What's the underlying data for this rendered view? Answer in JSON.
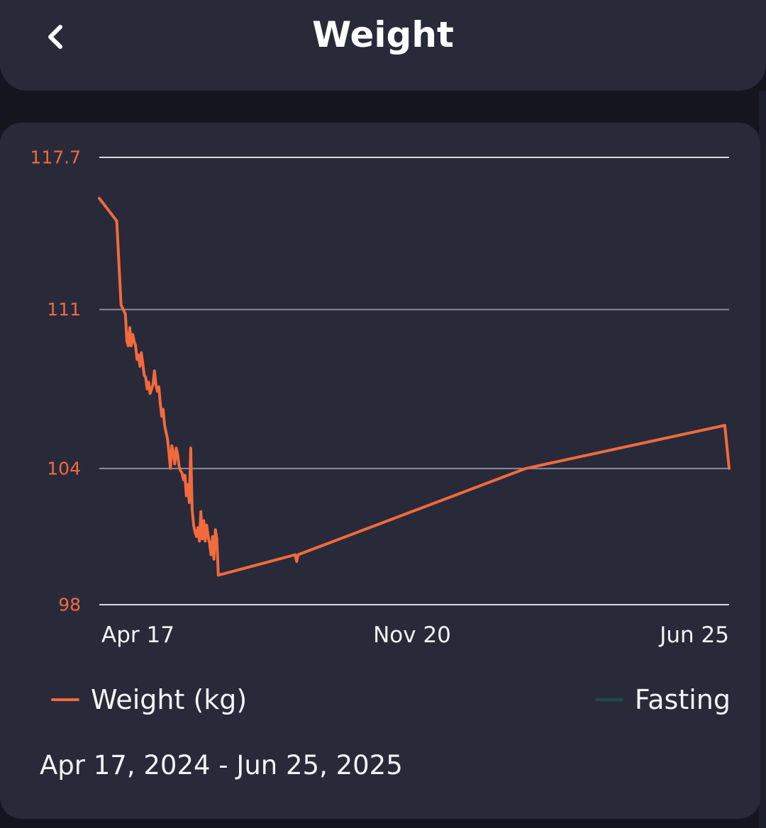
{
  "header": {
    "title": "Weight",
    "back_icon": "chevron-left-icon"
  },
  "colors": {
    "background": "#14151f",
    "surface": "#282a3a",
    "weight_line": "#f26a3d",
    "fasting_line": "#1c4a4a",
    "gridline": "#8a8c96",
    "tick_label": "#f26a3d",
    "text": "#f4f4f6"
  },
  "chart_data": {
    "type": "line",
    "title": "",
    "xlabel": "",
    "ylabel": "",
    "ylim": [
      98,
      117.7
    ],
    "yticks": [
      "117.7",
      "111",
      "104",
      "98"
    ],
    "xticks": [
      "Apr 17",
      "Nov 20",
      "Jun 25"
    ],
    "xlim": [
      "2024-04-17",
      "2025-06-25"
    ],
    "grid": true,
    "legend_position": "bottom",
    "series": [
      {
        "name": "Weight (kg)",
        "color": "#f26a3d",
        "points": [
          [
            "2024-04-17",
            115.9
          ],
          [
            "2024-04-29",
            114.9
          ],
          [
            "2024-05-02",
            111.2
          ],
          [
            "2024-05-05",
            110.8
          ],
          [
            "2024-05-06",
            109.6
          ],
          [
            "2024-05-07",
            109.4
          ],
          [
            "2024-05-08",
            110.2
          ],
          [
            "2024-05-09",
            109.4
          ],
          [
            "2024-05-10",
            109.9
          ],
          [
            "2024-05-11",
            109.6
          ],
          [
            "2024-05-12",
            109.4
          ],
          [
            "2024-05-13",
            108.8
          ],
          [
            "2024-05-14",
            109.0
          ],
          [
            "2024-05-15",
            108.5
          ],
          [
            "2024-05-16",
            109.1
          ],
          [
            "2024-05-17",
            108.6
          ],
          [
            "2024-05-18",
            108.1
          ],
          [
            "2024-05-19",
            108.0
          ],
          [
            "2024-05-20",
            107.5
          ],
          [
            "2024-05-21",
            107.8
          ],
          [
            "2024-05-22",
            107.3
          ],
          [
            "2024-05-23",
            107.5
          ],
          [
            "2024-05-24",
            107.7
          ],
          [
            "2024-05-25",
            108.3
          ],
          [
            "2024-05-26",
            107.7
          ],
          [
            "2024-05-27",
            107.4
          ],
          [
            "2024-05-28",
            107.6
          ],
          [
            "2024-05-29",
            106.9
          ],
          [
            "2024-05-30",
            106.3
          ],
          [
            "2024-05-31",
            106.6
          ],
          [
            "2024-06-01",
            105.9
          ],
          [
            "2024-06-02",
            105.6
          ],
          [
            "2024-06-03",
            105.3
          ],
          [
            "2024-06-04",
            104.7
          ],
          [
            "2024-06-05",
            104.0
          ],
          [
            "2024-06-06",
            105.0
          ],
          [
            "2024-06-07",
            104.7
          ],
          [
            "2024-06-08",
            104.2
          ],
          [
            "2024-06-09",
            104.9
          ],
          [
            "2024-06-10",
            104.6
          ],
          [
            "2024-06-11",
            104.1
          ],
          [
            "2024-06-12",
            103.9
          ],
          [
            "2024-06-13",
            103.8
          ],
          [
            "2024-06-14",
            103.5
          ],
          [
            "2024-06-15",
            103.7
          ],
          [
            "2024-06-16",
            102.8
          ],
          [
            "2024-06-17",
            103.3
          ],
          [
            "2024-06-18",
            102.5
          ],
          [
            "2024-06-19",
            104.9
          ],
          [
            "2024-06-20",
            102.2
          ],
          [
            "2024-06-21",
            101.5
          ],
          [
            "2024-06-22",
            101.2
          ],
          [
            "2024-06-23",
            101.0
          ],
          [
            "2024-06-24",
            101.4
          ],
          [
            "2024-06-25",
            100.8
          ],
          [
            "2024-06-26",
            102.1
          ],
          [
            "2024-06-27",
            100.9
          ],
          [
            "2024-06-28",
            101.7
          ],
          [
            "2024-06-29",
            100.8
          ],
          [
            "2024-06-30",
            101.5
          ],
          [
            "2024-07-01",
            101.0
          ],
          [
            "2024-07-02",
            100.7
          ],
          [
            "2024-07-03",
            100.2
          ],
          [
            "2024-07-04",
            101.0
          ],
          [
            "2024-07-05",
            100.0
          ],
          [
            "2024-07-06",
            101.3
          ],
          [
            "2024-07-07",
            100.9
          ],
          [
            "2024-07-08",
            99.3
          ],
          [
            "2024-08-30",
            100.2
          ],
          [
            "2024-08-31",
            99.9
          ],
          [
            "2024-09-01",
            100.2
          ],
          [
            "2025-02-05",
            104.0
          ],
          [
            "2025-06-22",
            105.9
          ],
          [
            "2025-06-25",
            104.0
          ]
        ]
      },
      {
        "name": "Fasting",
        "color": "#1c4a4a",
        "points": []
      }
    ]
  },
  "legend": {
    "weight_label": "Weight (kg)",
    "fasting_label": "Fasting"
  },
  "date_range": "Apr 17, 2024 - Jun 25, 2025"
}
